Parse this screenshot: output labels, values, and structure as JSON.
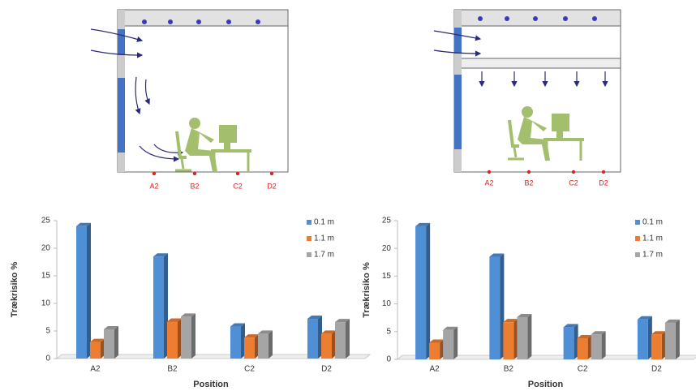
{
  "diagrams": [
    {
      "labels": [
        "A2",
        "B2",
        "C2",
        "D2"
      ]
    },
    {
      "labels": [
        "A2",
        "B2",
        "C2",
        "D2"
      ]
    }
  ],
  "chart_data": [
    {
      "type": "bar",
      "ylabel": "Trækrisiko %",
      "xlabel": "Position",
      "categories": [
        "A2",
        "B2",
        "C2",
        "D2"
      ],
      "series": [
        {
          "name": "0.1 m",
          "color": "#4f8fd6",
          "values": [
            24,
            18.5,
            5.8,
            7.2
          ]
        },
        {
          "name": "1.1 m",
          "color": "#ed7d31",
          "values": [
            3,
            6.7,
            3.8,
            4.5
          ]
        },
        {
          "name": "1.7 m",
          "color": "#a5a5a5",
          "values": [
            5.3,
            7.6,
            4.5,
            6.6
          ]
        }
      ],
      "ylim": [
        0,
        25
      ],
      "yticks": [
        0,
        5,
        10,
        15,
        20,
        25
      ],
      "legend": "upper right"
    },
    {
      "type": "bar",
      "ylabel": "Trækrisiko %",
      "xlabel": "Position",
      "categories": [
        "A2",
        "B2",
        "C2",
        "D2"
      ],
      "series": [
        {
          "name": "0.1 m",
          "color": "#4f8fd6",
          "values": [
            24,
            18.5,
            5.8,
            7.2
          ]
        },
        {
          "name": "1.1 m",
          "color": "#ed7d31",
          "values": [
            3,
            6.7,
            3.8,
            4.5
          ]
        },
        {
          "name": "1.7 m",
          "color": "#a5a5a5",
          "values": [
            5.3,
            7.6,
            4.5,
            6.6
          ]
        }
      ],
      "ylim": [
        0,
        25
      ],
      "yticks": [
        0,
        5,
        10,
        15,
        20,
        25
      ],
      "legend": "upper right"
    }
  ]
}
